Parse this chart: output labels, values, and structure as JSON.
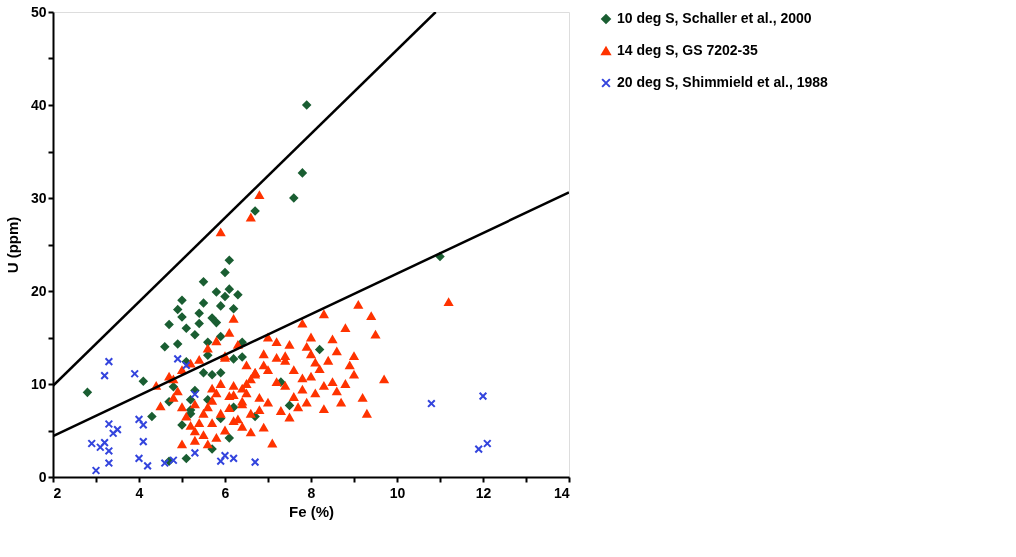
{
  "chart_data": {
    "type": "scatter",
    "xlabel": "Fe (%)",
    "ylabel": "U (ppm)",
    "xlim": [
      2,
      14
    ],
    "ylim": [
      0,
      50
    ],
    "xticks": [
      2,
      {
        "value": 3,
        "label": null
      },
      4,
      {
        "value": 5,
        "label": null
      },
      6,
      {
        "value": 7,
        "label": null
      },
      8,
      {
        "value": 9,
        "label": null
      },
      10,
      {
        "value": 11,
        "label": null
      },
      12,
      {
        "value": 13,
        "label": null
      },
      14
    ],
    "yticks": [
      0,
      {
        "value": 5,
        "label": null
      },
      10,
      {
        "value": 15,
        "label": null
      },
      20,
      {
        "value": 25,
        "label": null
      },
      30,
      {
        "value": 35,
        "label": null
      },
      40,
      {
        "value": 45,
        "label": null
      },
      50
    ],
    "grid": false,
    "legend": "top right",
    "series": [
      {
        "name": "10 deg S, Schaller et al., 2000",
        "color": "#1a5e32",
        "marker": "diamond",
        "x": [
          2.8,
          4.1,
          4.6,
          4.7,
          4.7,
          4.7,
          4.8,
          4.9,
          4.9,
          5.0,
          5.0,
          5.1,
          5.1,
          5.2,
          5.2,
          5.3,
          5.3,
          5.4,
          5.4,
          5.5,
          5.5,
          5.5,
          5.6,
          5.6,
          5.7,
          5.7,
          5.8,
          5.8,
          5.9,
          5.9,
          5.9,
          6.0,
          6.0,
          6.1,
          6.1,
          6.2,
          6.2,
          6.2,
          6.3,
          6.4,
          6.1,
          5.6,
          5.9,
          5.7,
          5.2,
          5.1,
          6.7,
          6.7,
          7.6,
          7.8,
          7.9,
          7.5,
          7.3,
          8.2,
          11.0,
          5.0,
          6.4,
          4.3
        ],
        "values": [
          9.1,
          10.3,
          14,
          1.7,
          8.1,
          16.4,
          9.7,
          14.3,
          18.0,
          19.0,
          17.2,
          16.0,
          12.4,
          7.2,
          8.3,
          9.3,
          15.3,
          17.6,
          16.5,
          21,
          18.7,
          11.2,
          14.5,
          13.1,
          17.1,
          11.0,
          16.6,
          19.9,
          18.4,
          15.1,
          11.2,
          22.0,
          19.4,
          23.3,
          20.2,
          18.1,
          12.7,
          7.5,
          19.6,
          14.5,
          4.2,
          8.3,
          6.3,
          3.0,
          6.8,
          2.0,
          28.6,
          6.5,
          30.0,
          32.7,
          40.0,
          7.7,
          10.2,
          13.7,
          23.7,
          5.6,
          12.9,
          6.5
        ]
      },
      {
        "name": "14 deg S, GS 7202-35",
        "color": "#ff3300",
        "marker": "triangle",
        "x": [
          5.9,
          6.6,
          6.8,
          11.2,
          9.1,
          9.4,
          9.5,
          9.7,
          8.9,
          8.6,
          8.8,
          8.3,
          8.0,
          7.9,
          7.8,
          8.1,
          7.6,
          7.4,
          7.2,
          7.0,
          6.9,
          6.7,
          6.5,
          6.3,
          6.2,
          6.1,
          6.0,
          5.9,
          5.8,
          5.7,
          5.6,
          5.5,
          5.4,
          5.3,
          5.2,
          5.1,
          5.0,
          4.9,
          4.8,
          4.7,
          4.5,
          4.4,
          6.4,
          6.6,
          6.8,
          7.0,
          7.2,
          7.4,
          7.6,
          7.8,
          8.0,
          8.2,
          8.4,
          8.6,
          8.8,
          9.0,
          9.2,
          6.2,
          6.4,
          6.6,
          6.8,
          7.0,
          7.3,
          7.5,
          7.7,
          7.9,
          8.1,
          8.3,
          8.5,
          8.7,
          5.6,
          5.8,
          6.0,
          6.2,
          6.4,
          6.6,
          6.9,
          7.1,
          5.3,
          5.5,
          5.7,
          5.9,
          6.1,
          6.3,
          6.5,
          6.7,
          4.8,
          5.0,
          5.2,
          5.4,
          5.6,
          5.8,
          6.0,
          6.2,
          6.4,
          6.7,
          7.2,
          7.5,
          8.0,
          8.5,
          9.0,
          9.3,
          5.0,
          5.3,
          5.7,
          6.1,
          6.5,
          6.9,
          7.4,
          7.8,
          8.3
        ],
        "values": [
          26.3,
          27.9,
          30.3,
          18.8,
          18.5,
          17.3,
          15.3,
          10.5,
          12.0,
          13.5,
          16.0,
          17.5,
          15.0,
          14.0,
          16.5,
          12.3,
          11.5,
          13.0,
          14.5,
          15.0,
          13.2,
          11.0,
          12.0,
          14.2,
          17.0,
          15.5,
          12.8,
          10.0,
          9.0,
          8.2,
          7.5,
          6.8,
          5.8,
          4.9,
          5.5,
          6.5,
          7.5,
          9.2,
          10.5,
          10.8,
          7.6,
          9.8,
          9.5,
          10.5,
          8.5,
          11.5,
          10.2,
          9.8,
          8.6,
          9.4,
          10.8,
          11.6,
          12.5,
          9.2,
          10.0,
          13.0,
          8.5,
          8.8,
          7.8,
          6.8,
          7.2,
          8.0,
          7.1,
          6.4,
          7.5,
          8.0,
          9.0,
          7.3,
          10.2,
          8.0,
          3.5,
          4.2,
          5.0,
          6.0,
          5.4,
          4.8,
          5.3,
          3.6,
          3.9,
          4.5,
          5.8,
          6.8,
          7.4,
          6.2,
          9.0,
          11.2,
          8.5,
          11.5,
          12.2,
          12.6,
          13.8,
          14.6,
          13.0,
          9.8,
          8.1,
          11.2,
          12.8,
          14.2,
          13.2,
          14.8,
          11.0,
          6.8,
          3.5,
          7.8,
          9.5,
          8.7,
          10.0,
          12.0,
          12.5,
          10.6,
          9.8
        ]
      },
      {
        "name": "20 deg S, Shimmield et al., 1988",
        "color": "#3344dd",
        "marker": "cross",
        "x": [
          2.9,
          3.0,
          3.1,
          3.2,
          3.3,
          3.2,
          3.3,
          3.3,
          3.3,
          3.4,
          3.5,
          3.9,
          4.0,
          4.1,
          4.1,
          4.0,
          4.2,
          4.6,
          4.8,
          4.9,
          5.1,
          5.3,
          5.3,
          5.9,
          6.0,
          6.2,
          6.7,
          10.8,
          12.0,
          11.9,
          12.1
        ],
        "values": [
          3.6,
          0.7,
          3.2,
          10.9,
          12.4,
          3.7,
          2.8,
          5.7,
          1.5,
          4.7,
          5.1,
          11.1,
          6.2,
          5.6,
          3.8,
          2.0,
          1.2,
          1.5,
          1.8,
          12.7,
          12.0,
          8.9,
          2.6,
          1.7,
          2.3,
          2.0,
          1.6,
          7.9,
          8.7,
          3.0,
          3.6
        ]
      },
      {
        "type": "line",
        "color": "#000000",
        "line_style": "solid",
        "x": [
          2,
          10.9
        ],
        "values": [
          9.8,
          50
        ]
      },
      {
        "type": "line",
        "color": "#000000",
        "line_style": "solid",
        "x": [
          2,
          14
        ],
        "values": [
          4.4,
          30.6
        ]
      }
    ]
  }
}
